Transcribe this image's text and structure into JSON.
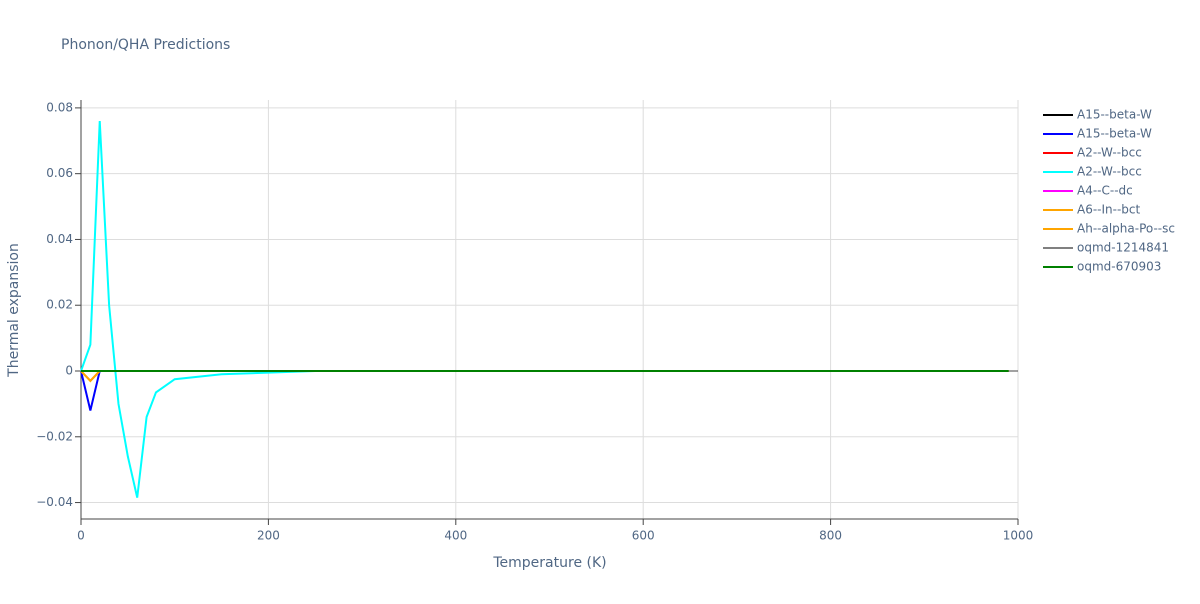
{
  "chart_data": {
    "type": "line",
    "title": "Phonon/QHA Predictions",
    "x_label": "Temperature (K)",
    "y_label": "Thermal expansion",
    "x": [
      0,
      10,
      20,
      30,
      40,
      50,
      60,
      70,
      80,
      100,
      150,
      200,
      250,
      300,
      400,
      500,
      600,
      700,
      800,
      900,
      990
    ],
    "series": [
      {
        "name": "A15--beta-W",
        "color": "#000000",
        "values": [
          0,
          0,
          0,
          0,
          0,
          0,
          0,
          0,
          0,
          0,
          0,
          0,
          0,
          0,
          0,
          0,
          0,
          0,
          0,
          0,
          0
        ]
      },
      {
        "name": "A15--beta-W",
        "color": "#0000ff",
        "values": [
          0,
          -0.012,
          0,
          0,
          0,
          0,
          0,
          0,
          0,
          0,
          0,
          0,
          0,
          0,
          0,
          0,
          0,
          0,
          0,
          0,
          0
        ]
      },
      {
        "name": "A2--W--bcc",
        "color": "#ff0000",
        "values": [
          0,
          0,
          0,
          0,
          0,
          0,
          0,
          0,
          0,
          0,
          0,
          0,
          0,
          0,
          0,
          0,
          0,
          0,
          0,
          0,
          0
        ]
      },
      {
        "name": "A2--W--bcc",
        "color": "#00ffff",
        "values": [
          0,
          0.008,
          0.076,
          0.02,
          -0.01,
          -0.026,
          -0.0385,
          -0.014,
          -0.0065,
          -0.0025,
          -0.001,
          -0.0005,
          0,
          0,
          0,
          0,
          0,
          0,
          0,
          0,
          0
        ]
      },
      {
        "name": "A4--C--dc",
        "color": "#ff00ff",
        "values": [
          0,
          0,
          0,
          0,
          0,
          0,
          0,
          0,
          0,
          0,
          0,
          0,
          0,
          0,
          0,
          0,
          0,
          0,
          0,
          0,
          0
        ]
      },
      {
        "name": "A6--In--bct",
        "color": "#ffa500",
        "values": [
          0,
          -0.003,
          0,
          0,
          0,
          0,
          0,
          0,
          0,
          0,
          0,
          0,
          0,
          0,
          0,
          0,
          0,
          0,
          0,
          0,
          0
        ]
      },
      {
        "name": "Ah--alpha-Po--sc",
        "color": "#ffa500",
        "values": [
          0,
          -0.003,
          0,
          0,
          0,
          0,
          0,
          0,
          0,
          0,
          0,
          0,
          0,
          0,
          0,
          0,
          0,
          0,
          0,
          0,
          0
        ]
      },
      {
        "name": "oqmd-1214841",
        "color": "#808080",
        "values": [
          0,
          0,
          0,
          0,
          0,
          0,
          0,
          0,
          0,
          0,
          0,
          0,
          0,
          0,
          0,
          0,
          0,
          0,
          0,
          0,
          0
        ]
      },
      {
        "name": "oqmd-670903",
        "color": "#008000",
        "values": [
          0,
          0,
          0,
          0,
          0,
          0,
          0,
          0,
          0,
          0,
          0,
          0,
          0,
          0,
          0,
          0,
          0,
          0,
          0,
          0,
          0
        ]
      }
    ],
    "xlim": [
      0,
      1000
    ],
    "xticks": [
      0,
      200,
      400,
      600,
      800,
      1000
    ],
    "ylim": [
      -0.045,
      0.0824
    ],
    "yticks": [
      {
        "value": -0.04,
        "label": "−0.04"
      },
      {
        "value": -0.02,
        "label": "−0.02"
      },
      0,
      0.02,
      0.04,
      0.06,
      0.08
    ],
    "grid": true
  }
}
